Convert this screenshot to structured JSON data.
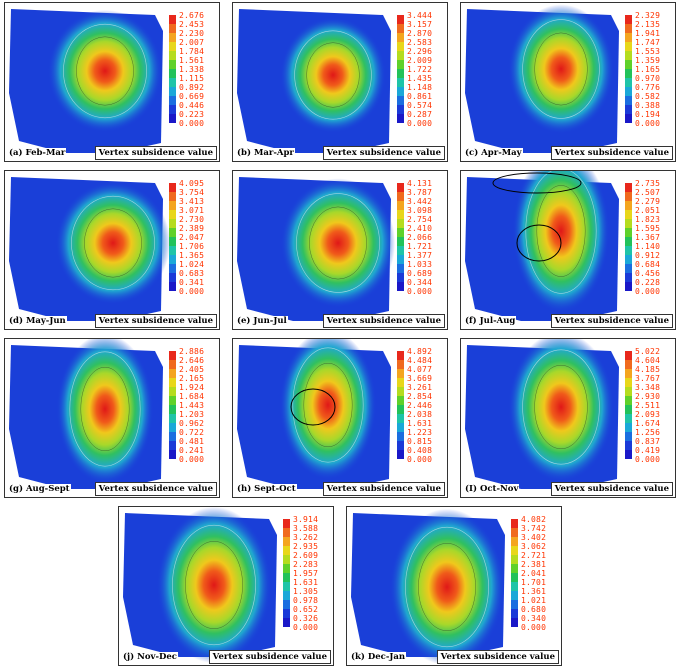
{
  "value_label": "Vertex subsidence value",
  "scale_colors": [
    "#e8281c",
    "#f06a1e",
    "#f4a51f",
    "#e8d71a",
    "#b5dc1e",
    "#5fd12a",
    "#22c25a",
    "#1fc4a8",
    "#1aa8d8",
    "#1a6ee0",
    "#1a3ad8",
    "#1a18c8"
  ],
  "panels": [
    {
      "caption": "(a) Feb-Mar",
      "scale": [
        "2.676",
        "2.453",
        "2.230",
        "2.007",
        "1.784",
        "1.561",
        "1.338",
        "1.115",
        "0.892",
        "0.669",
        "0.446",
        "0.223",
        "0.000"
      ]
    },
    {
      "caption": "(b) Mar-Apr",
      "scale": [
        "3.444",
        "3.157",
        "2.870",
        "2.583",
        "2.296",
        "2.009",
        "1.722",
        "1.435",
        "1.148",
        "0.861",
        "0.574",
        "0.287",
        "0.000"
      ]
    },
    {
      "caption": "(c) Apr-May",
      "scale": [
        "2.329",
        "2.135",
        "1.941",
        "1.747",
        "1.553",
        "1.359",
        "1.165",
        "0.970",
        "0.776",
        "0.582",
        "0.388",
        "0.194",
        "0.000"
      ]
    },
    {
      "caption": "(d) May-Jun",
      "scale": [
        "4.095",
        "3.754",
        "3.413",
        "3.071",
        "2.730",
        "2.389",
        "2.047",
        "1.706",
        "1.365",
        "1.024",
        "0.683",
        "0.341",
        "0.000"
      ]
    },
    {
      "caption": "(e) Jun-Jul",
      "scale": [
        "4.131",
        "3.787",
        "3.442",
        "3.098",
        "2.754",
        "2.410",
        "2.066",
        "1.721",
        "1.377",
        "1.033",
        "0.689",
        "0.344",
        "0.000"
      ]
    },
    {
      "caption": "(f) Jul-Aug",
      "scale": [
        "2.735",
        "2.507",
        "2.279",
        "2.051",
        "1.823",
        "1.595",
        "1.367",
        "1.140",
        "0.912",
        "0.684",
        "0.456",
        "0.228",
        "0.000"
      ]
    },
    {
      "caption": "(g) Aug-Sept",
      "scale": [
        "2.886",
        "2.646",
        "2.405",
        "2.165",
        "1.924",
        "1.684",
        "1.443",
        "1.203",
        "0.962",
        "0.722",
        "0.481",
        "0.241",
        "0.000"
      ]
    },
    {
      "caption": "(h) Sept-Oct",
      "scale": [
        "4.892",
        "4.484",
        "4.077",
        "3.669",
        "3.261",
        "2.854",
        "2.446",
        "2.038",
        "1.631",
        "1.223",
        "0.815",
        "0.408",
        "0.000"
      ]
    },
    {
      "caption": "(I) Oct-Nov",
      "scale": [
        "5.022",
        "4.604",
        "4.185",
        "3.767",
        "3.348",
        "2.930",
        "2.511",
        "2.093",
        "1.674",
        "1.256",
        "0.837",
        "0.419",
        "0.000"
      ]
    },
    {
      "caption": "(j) Nov-Dec",
      "scale": [
        "3.914",
        "3.588",
        "3.262",
        "2.935",
        "2.609",
        "2.283",
        "1.957",
        "1.631",
        "1.305",
        "0.978",
        "0.652",
        "0.326",
        "0.000"
      ]
    },
    {
      "caption": "(k) Dec-Jan",
      "scale": [
        "4.082",
        "3.742",
        "3.402",
        "3.062",
        "2.721",
        "2.381",
        "2.041",
        "1.701",
        "1.361",
        "1.021",
        "0.680",
        "0.340",
        "0.000"
      ]
    }
  ]
}
